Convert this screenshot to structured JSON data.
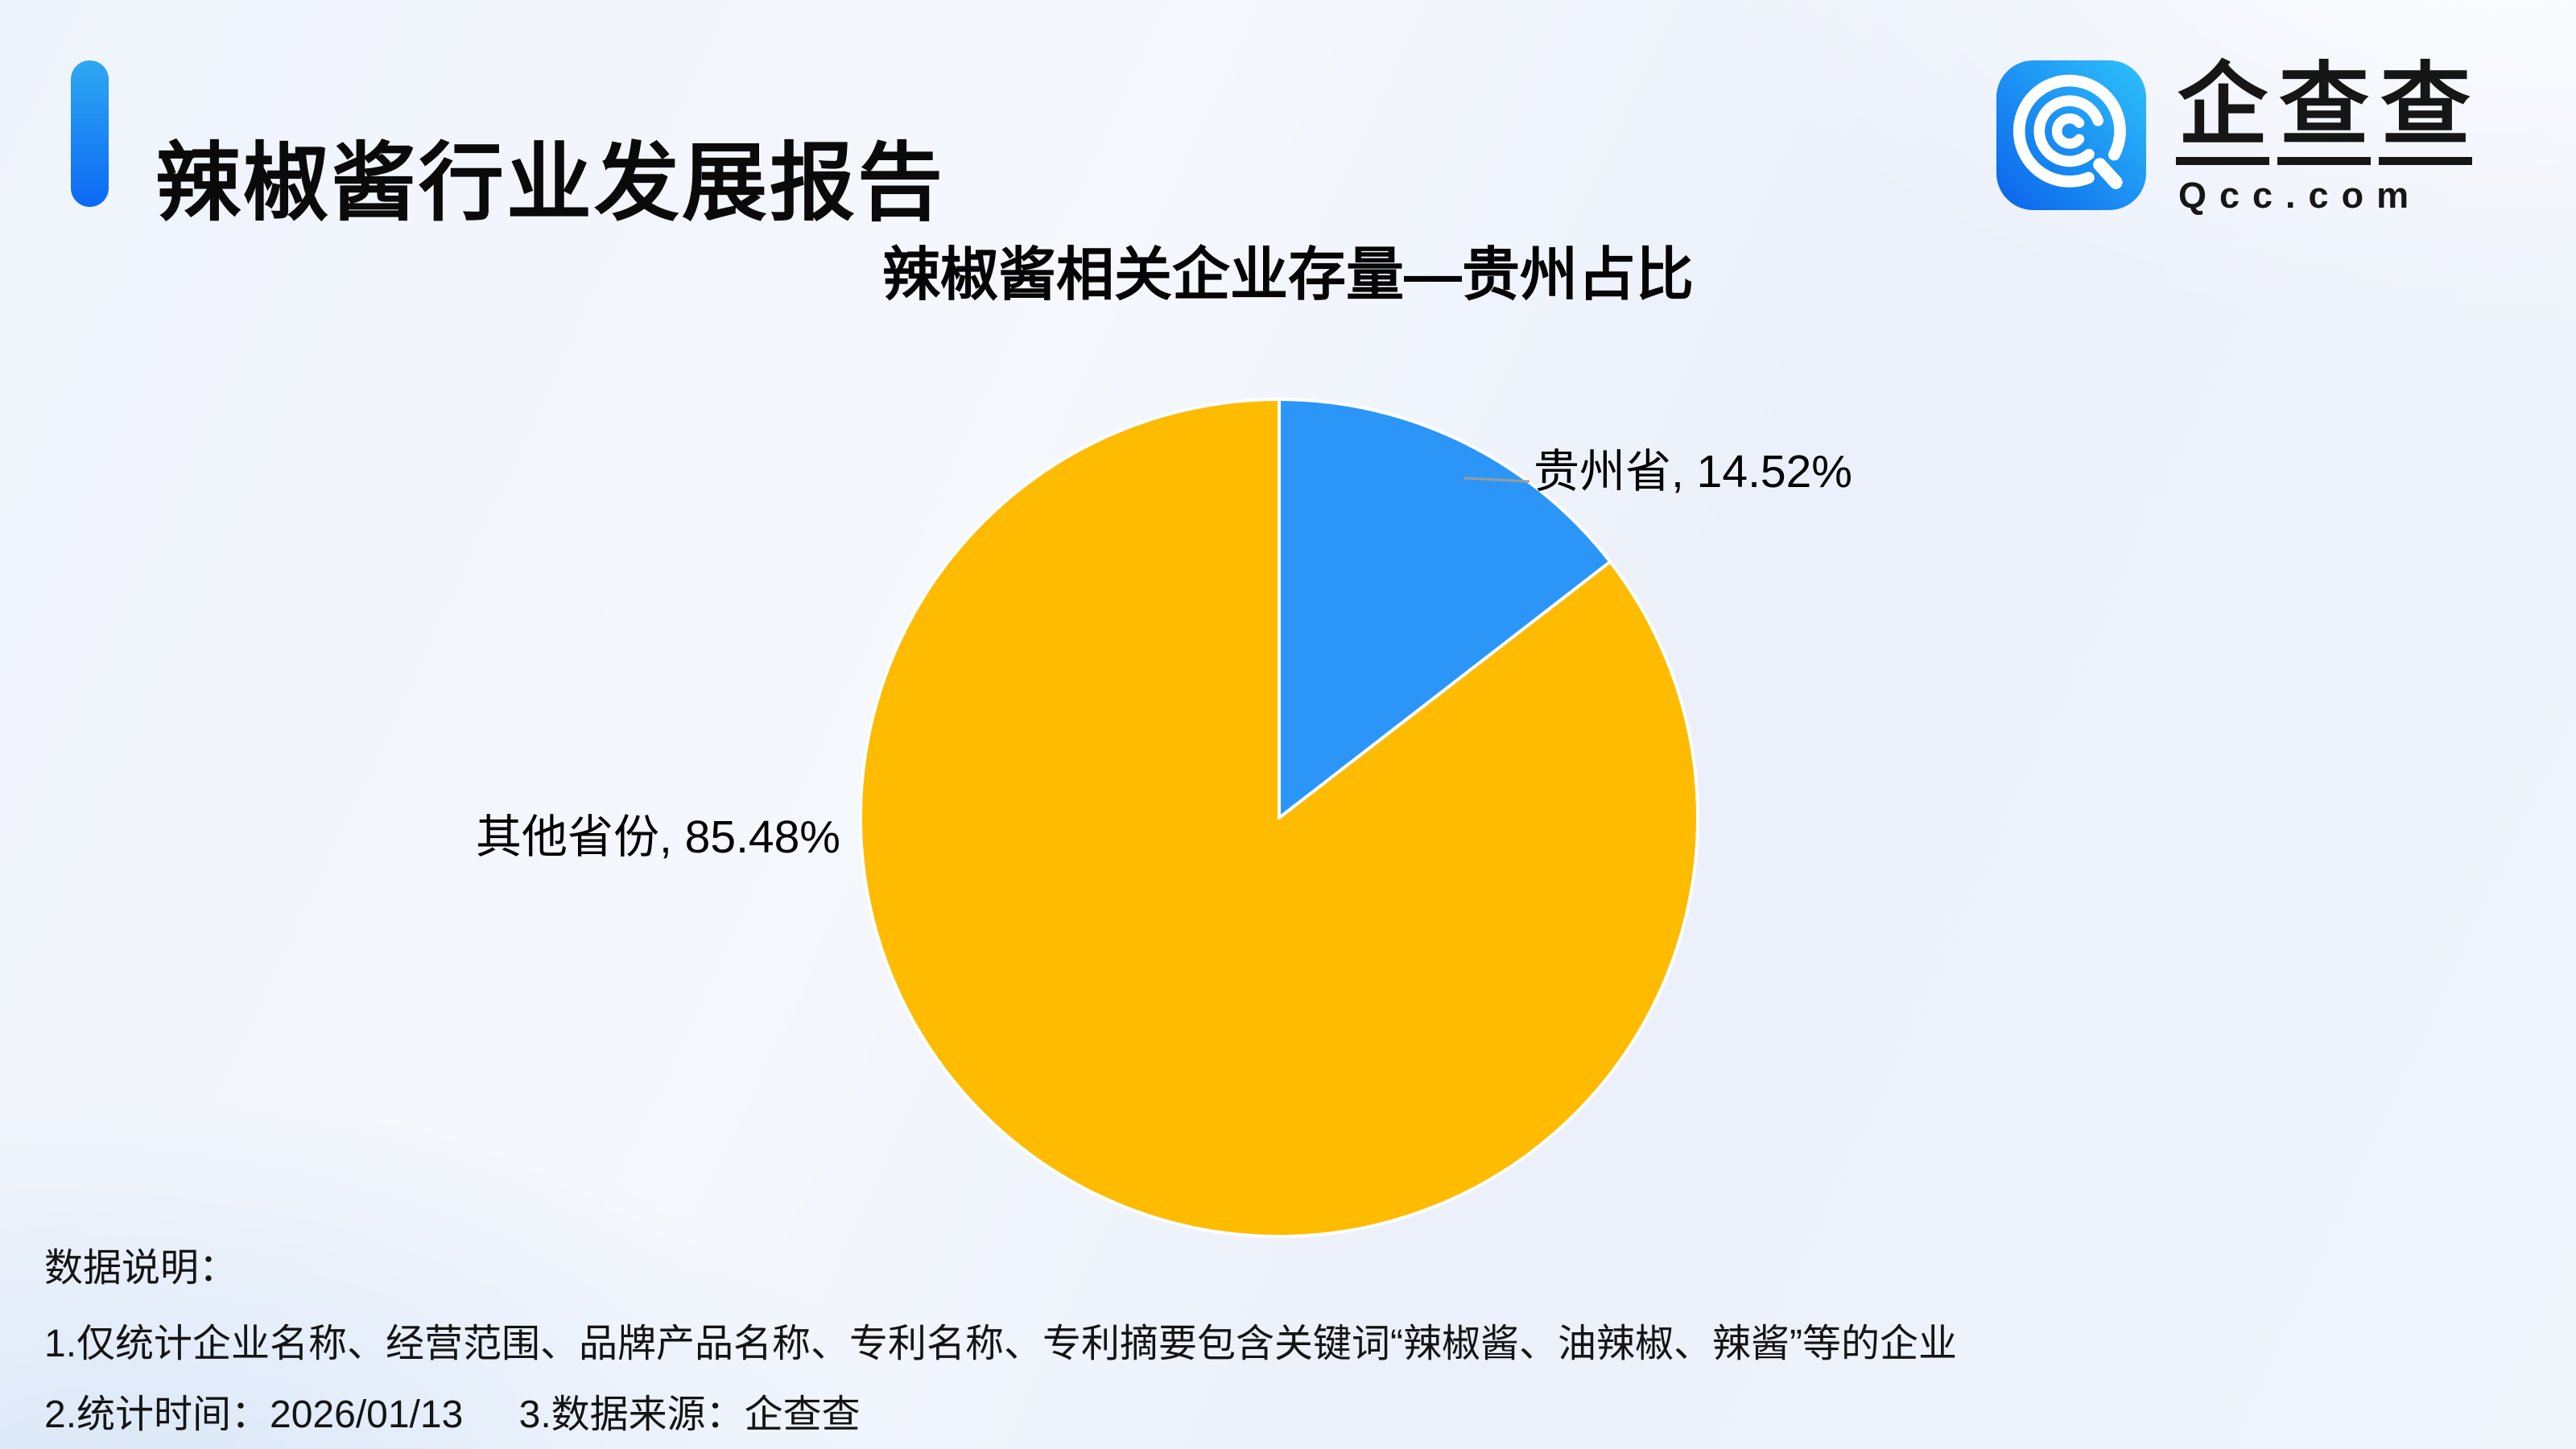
{
  "header": {
    "title": "辣椒酱行业发展报告"
  },
  "brand": {
    "name": "企查查",
    "name_chars": [
      "企",
      "查",
      "查"
    ],
    "domain": "Qcc.com",
    "icon": "qcc-magnifier-icon"
  },
  "chart_data": {
    "type": "pie",
    "title": "辣椒酱相关企业存量—贵州占比",
    "slices": [
      {
        "label": "贵州省",
        "value": 14.52,
        "display": "贵州省, 14.52%",
        "color": "#2B96F8"
      },
      {
        "label": "其他省份",
        "value": 85.48,
        "display": "其他省份, 85.48%",
        "color": "#FFBB00"
      }
    ],
    "unit": "%",
    "start_angle_deg": 0,
    "direction": "clockwise",
    "label_position": "outside",
    "legend": "none"
  },
  "footnotes": {
    "heading": "数据说明：",
    "note1": "1.仅统计企业名称、经营范围、品牌产品名称、专利名称、专利摘要包含关键词“辣椒酱、油辣椒、辣酱”等的企业",
    "note2": "2.统计时间：2026/01/13",
    "note3": "3.数据来源：企查查"
  },
  "colors": {
    "accent_blue_top": "#2FA8F2",
    "accent_blue_bottom": "#0B69F5",
    "slice_blue": "#2B96F8",
    "slice_yellow": "#FFBB00",
    "leader_gray": "#9B9B9B",
    "text_dark": "#111111",
    "background": "#EFF3FB"
  }
}
